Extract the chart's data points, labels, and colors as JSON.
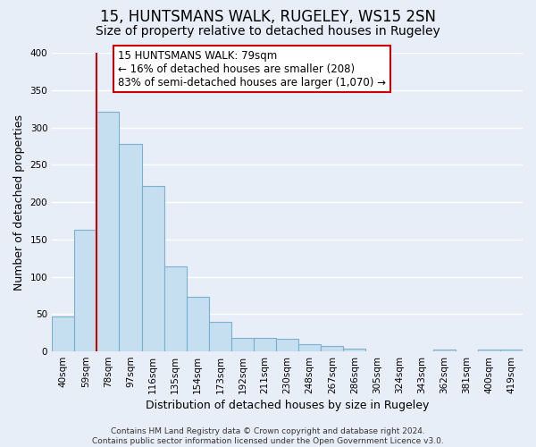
{
  "title": "15, HUNTSMANS WALK, RUGELEY, WS15 2SN",
  "subtitle": "Size of property relative to detached houses in Rugeley",
  "xlabel": "Distribution of detached houses by size in Rugeley",
  "ylabel": "Number of detached properties",
  "bar_labels": [
    "40sqm",
    "59sqm",
    "78sqm",
    "97sqm",
    "116sqm",
    "135sqm",
    "154sqm",
    "173sqm",
    "192sqm",
    "211sqm",
    "230sqm",
    "248sqm",
    "267sqm",
    "286sqm",
    "305sqm",
    "324sqm",
    "343sqm",
    "362sqm",
    "381sqm",
    "400sqm",
    "419sqm"
  ],
  "bar_values": [
    47,
    163,
    321,
    278,
    221,
    114,
    73,
    39,
    18,
    18,
    17,
    10,
    7,
    4,
    0,
    0,
    0,
    3,
    0,
    2,
    2
  ],
  "bar_color": "#c5dff0",
  "bar_edge_color": "#7ab0cc",
  "property_line_label": "15 HUNTSMANS WALK: 79sqm",
  "annotation_line1": "← 16% of detached houses are smaller (208)",
  "annotation_line2": "83% of semi-detached houses are larger (1,070) →",
  "annotation_box_color": "#ffffff",
  "annotation_box_edge": "#cc0000",
  "vline_color": "#cc0000",
  "vline_bar_index": 2,
  "ylim": [
    0,
    400
  ],
  "yticks": [
    0,
    50,
    100,
    150,
    200,
    250,
    300,
    350,
    400
  ],
  "footer_line1": "Contains HM Land Registry data © Crown copyright and database right 2024.",
  "footer_line2": "Contains public sector information licensed under the Open Government Licence v3.0.",
  "background_color": "#e8eef8",
  "grid_color": "#ffffff",
  "title_fontsize": 12,
  "subtitle_fontsize": 10,
  "axis_label_fontsize": 9,
  "tick_fontsize": 7.5,
  "annotation_fontsize": 8.5,
  "footer_fontsize": 6.5
}
